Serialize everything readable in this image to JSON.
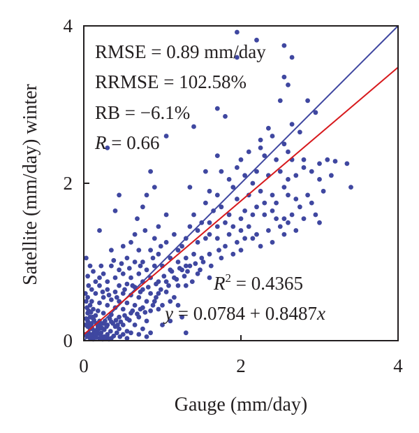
{
  "chart_data": {
    "type": "scatter",
    "xlabel": "Gauge (mm/day)",
    "ylabel": "Satellite (mm/day) winter",
    "xlim": [
      0,
      4
    ],
    "ylim": [
      0,
      4
    ],
    "x_ticks": [
      "0",
      "2",
      "4"
    ],
    "y_ticks": [
      "0",
      "2",
      "4"
    ],
    "grid": false,
    "colors": {
      "points": "#3f47a0",
      "one_to_one": "#3f47a0",
      "fit": "#d7191c"
    },
    "stats": {
      "rmse": "RMSE = 0.89 mm/day",
      "rrmse": "RRMSE = 102.58%",
      "rb": "RB = −6.1%",
      "r_symbol": "R",
      "r_value": " = 0.66",
      "r2_symbol": "R",
      "r2_sup": "2",
      "r2_value": " = 0.4365",
      "eq_y": "y",
      "eq_body": " = 0.0784 + 0.8487",
      "eq_x": "x"
    },
    "lines": [
      {
        "name": "1:1 line",
        "intercept": 0,
        "slope": 1
      },
      {
        "name": "fit",
        "intercept": 0.0784,
        "slope": 0.8487
      }
    ],
    "points": [
      [
        1.95,
        3.92
      ],
      [
        2.2,
        3.82
      ],
      [
        2.55,
        3.75
      ],
      [
        1.95,
        3.6
      ],
      [
        2.65,
        3.6
      ],
      [
        2.55,
        3.35
      ],
      [
        2.6,
        3.25
      ],
      [
        2.5,
        3.05
      ],
      [
        2.85,
        3.05
      ],
      [
        2.95,
        2.9
      ],
      [
        2.65,
        2.75
      ],
      [
        1.7,
        2.95
      ],
      [
        1.8,
        2.85
      ],
      [
        1.05,
        2.6
      ],
      [
        1.4,
        2.72
      ],
      [
        2.35,
        2.7
      ],
      [
        2.75,
        2.65
      ],
      [
        2.25,
        2.55
      ],
      [
        2.4,
        2.6
      ],
      [
        2.55,
        2.5
      ],
      [
        2.6,
        2.4
      ],
      [
        0.3,
        2.45
      ],
      [
        0.85,
        2.15
      ],
      [
        1.7,
        2.35
      ],
      [
        2.0,
        2.3
      ],
      [
        2.1,
        2.4
      ],
      [
        2.25,
        2.45
      ],
      [
        2.3,
        2.35
      ],
      [
        2.45,
        2.3
      ],
      [
        2.65,
        2.3
      ],
      [
        2.8,
        2.3
      ],
      [
        3.0,
        2.25
      ],
      [
        3.1,
        2.3
      ],
      [
        3.2,
        2.28
      ],
      [
        3.35,
        2.25
      ],
      [
        3.4,
        1.95
      ],
      [
        1.55,
        2.15
      ],
      [
        1.75,
        2.15
      ],
      [
        1.85,
        2.05
      ],
      [
        1.95,
        2.2
      ],
      [
        2.05,
        2.1
      ],
      [
        2.15,
        2.0
      ],
      [
        2.2,
        2.15
      ],
      [
        2.35,
        2.1
      ],
      [
        2.5,
        2.15
      ],
      [
        2.6,
        2.05
      ],
      [
        2.7,
        2.1
      ],
      [
        2.8,
        2.2
      ],
      [
        2.9,
        2.15
      ],
      [
        3.0,
        2.05
      ],
      [
        2.55,
        1.95
      ],
      [
        2.6,
        1.85
      ],
      [
        1.35,
        1.95
      ],
      [
        1.6,
        1.9
      ],
      [
        1.7,
        1.85
      ],
      [
        1.9,
        1.95
      ],
      [
        1.95,
        1.8
      ],
      [
        2.1,
        1.85
      ],
      [
        2.25,
        1.9
      ],
      [
        2.4,
        1.85
      ],
      [
        2.45,
        1.75
      ],
      [
        2.7,
        1.8
      ],
      [
        2.85,
        1.85
      ],
      [
        2.9,
        1.75
      ],
      [
        2.95,
        1.6
      ],
      [
        1.55,
        1.75
      ],
      [
        1.75,
        1.7
      ],
      [
        1.85,
        1.6
      ],
      [
        2.05,
        1.65
      ],
      [
        2.2,
        1.7
      ],
      [
        2.3,
        1.6
      ],
      [
        2.4,
        1.65
      ],
      [
        2.55,
        1.55
      ],
      [
        2.65,
        1.6
      ],
      [
        2.8,
        1.55
      ],
      [
        3.0,
        1.5
      ],
      [
        0.8,
        1.85
      ],
      [
        0.75,
        1.7
      ],
      [
        1.05,
        1.6
      ],
      [
        0.4,
        1.65
      ],
      [
        1.4,
        1.6
      ],
      [
        1.5,
        1.5
      ],
      [
        1.6,
        1.5
      ],
      [
        1.7,
        1.45
      ],
      [
        1.8,
        1.5
      ],
      [
        1.9,
        1.45
      ],
      [
        2.0,
        1.4
      ],
      [
        2.1,
        1.45
      ],
      [
        2.2,
        1.35
      ],
      [
        2.35,
        1.4
      ],
      [
        2.5,
        1.45
      ],
      [
        2.55,
        1.35
      ],
      [
        2.7,
        1.4
      ],
      [
        1.6,
        1.35
      ],
      [
        1.7,
        1.3
      ],
      [
        1.85,
        1.35
      ],
      [
        1.95,
        1.25
      ],
      [
        2.05,
        1.3
      ],
      [
        2.25,
        1.2
      ],
      [
        1.8,
        1.2
      ],
      [
        2.0,
        1.15
      ],
      [
        1.55,
        1.3
      ],
      [
        1.45,
        1.25
      ],
      [
        1.3,
        1.3
      ],
      [
        1.25,
        1.2
      ],
      [
        1.4,
        1.1
      ],
      [
        1.3,
        1.05
      ],
      [
        1.5,
        1.05
      ],
      [
        1.6,
        1.1
      ],
      [
        1.75,
        1.05
      ],
      [
        0.9,
        1.3
      ],
      [
        1.05,
        1.25
      ],
      [
        1.2,
        1.15
      ],
      [
        0.6,
        1.25
      ],
      [
        0.7,
        1.15
      ],
      [
        0.85,
        1.15
      ],
      [
        0.95,
        1.1
      ],
      [
        1.1,
        1.05
      ],
      [
        1.2,
        1.0
      ],
      [
        1.3,
        0.95
      ],
      [
        0.55,
        1.05
      ],
      [
        0.65,
        1.0
      ],
      [
        0.75,
        1.0
      ],
      [
        0.8,
        0.9
      ],
      [
        0.9,
        0.95
      ],
      [
        1.0,
        0.95
      ],
      [
        1.1,
        0.9
      ],
      [
        1.25,
        0.9
      ],
      [
        1.35,
        0.95
      ],
      [
        1.45,
        0.85
      ],
      [
        1.6,
        0.8
      ],
      [
        0.95,
        1.45
      ],
      [
        0.35,
        0.95
      ],
      [
        0.45,
        0.9
      ],
      [
        0.5,
        0.85
      ],
      [
        0.6,
        0.8
      ],
      [
        0.7,
        0.85
      ],
      [
        0.75,
        0.75
      ],
      [
        0.85,
        0.8
      ],
      [
        0.95,
        0.75
      ],
      [
        1.05,
        0.75
      ],
      [
        1.15,
        0.8
      ],
      [
        1.2,
        0.7
      ],
      [
        0.25,
        0.85
      ],
      [
        0.3,
        0.75
      ],
      [
        0.4,
        0.8
      ],
      [
        0.45,
        0.7
      ],
      [
        0.55,
        0.72
      ],
      [
        0.65,
        0.68
      ],
      [
        0.75,
        0.65
      ],
      [
        0.85,
        0.6
      ],
      [
        0.95,
        0.6
      ],
      [
        1.05,
        0.62
      ],
      [
        1.15,
        0.55
      ],
      [
        1.3,
        0.7
      ],
      [
        1.0,
        0.45
      ],
      [
        1.1,
        0.5
      ],
      [
        1.2,
        0.45
      ],
      [
        0.9,
        0.5
      ],
      [
        0.8,
        0.5
      ],
      [
        0.7,
        0.55
      ],
      [
        0.6,
        0.58
      ],
      [
        0.5,
        0.6
      ],
      [
        0.4,
        0.62
      ],
      [
        0.3,
        0.65
      ],
      [
        0.2,
        0.7
      ],
      [
        0.15,
        0.6
      ],
      [
        0.25,
        0.55
      ],
      [
        0.35,
        0.52
      ],
      [
        0.45,
        0.5
      ],
      [
        0.55,
        0.48
      ],
      [
        0.65,
        0.45
      ],
      [
        0.75,
        0.42
      ],
      [
        0.85,
        0.38
      ],
      [
        0.95,
        0.4
      ],
      [
        0.6,
        0.35
      ],
      [
        0.7,
        0.3
      ],
      [
        0.8,
        0.25
      ],
      [
        0.5,
        0.4
      ],
      [
        0.4,
        0.42
      ],
      [
        0.3,
        0.45
      ],
      [
        0.2,
        0.48
      ],
      [
        0.1,
        0.5
      ],
      [
        0.05,
        0.55
      ],
      [
        0.08,
        0.45
      ],
      [
        0.12,
        0.4
      ],
      [
        0.18,
        0.38
      ],
      [
        0.25,
        0.35
      ],
      [
        0.35,
        0.33
      ],
      [
        0.45,
        0.3
      ],
      [
        0.55,
        0.28
      ],
      [
        0.65,
        0.2
      ],
      [
        0.75,
        0.15
      ],
      [
        0.85,
        0.1
      ],
      [
        1.0,
        0.2
      ],
      [
        1.1,
        0.25
      ],
      [
        1.25,
        0.3
      ],
      [
        1.3,
        0.1
      ],
      [
        0.05,
        0.35
      ],
      [
        0.08,
        0.3
      ],
      [
        0.12,
        0.28
      ],
      [
        0.15,
        0.32
      ],
      [
        0.2,
        0.25
      ],
      [
        0.25,
        0.22
      ],
      [
        0.3,
        0.2
      ],
      [
        0.35,
        0.24
      ],
      [
        0.4,
        0.18
      ],
      [
        0.45,
        0.15
      ],
      [
        0.5,
        0.2
      ],
      [
        0.55,
        0.12
      ],
      [
        0.6,
        0.1
      ],
      [
        0.7,
        0.08
      ],
      [
        0.8,
        0.05
      ],
      [
        0.02,
        0.2
      ],
      [
        0.05,
        0.18
      ],
      [
        0.08,
        0.15
      ],
      [
        0.1,
        0.22
      ],
      [
        0.14,
        0.12
      ],
      [
        0.18,
        0.18
      ],
      [
        0.22,
        0.1
      ],
      [
        0.26,
        0.14
      ],
      [
        0.3,
        0.08
      ],
      [
        0.34,
        0.12
      ],
      [
        0.38,
        0.06
      ],
      [
        0.42,
        0.1
      ],
      [
        0.46,
        0.05
      ],
      [
        0.5,
        0.08
      ],
      [
        0.55,
        0.03
      ],
      [
        0.02,
        0.08
      ],
      [
        0.04,
        0.05
      ],
      [
        0.06,
        0.1
      ],
      [
        0.08,
        0.03
      ],
      [
        0.1,
        0.07
      ],
      [
        0.12,
        0.02
      ],
      [
        0.14,
        0.06
      ],
      [
        0.16,
        0.04
      ],
      [
        0.18,
        0.09
      ],
      [
        0.2,
        0.03
      ],
      [
        0.22,
        0.06
      ],
      [
        0.24,
        0.02
      ],
      [
        0.26,
        0.05
      ],
      [
        0.28,
        0.03
      ],
      [
        0.3,
        0.04
      ],
      [
        0.32,
        0.02
      ],
      [
        0.35,
        0.03
      ],
      [
        0.02,
        0.6
      ],
      [
        0.03,
        0.5
      ],
      [
        0.04,
        0.42
      ],
      [
        0.06,
        0.38
      ],
      [
        0.09,
        0.36
      ],
      [
        0.11,
        0.3
      ],
      [
        0.13,
        0.26
      ],
      [
        0.16,
        0.22
      ],
      [
        0.19,
        0.15
      ],
      [
        0.03,
        0.28
      ],
      [
        0.05,
        0.25
      ],
      [
        0.07,
        0.22
      ],
      [
        0.09,
        0.18
      ],
      [
        0.11,
        0.15
      ],
      [
        0.13,
        0.1
      ],
      [
        0.15,
        0.08
      ],
      [
        0.17,
        0.13
      ],
      [
        0.21,
        0.2
      ],
      [
        0.23,
        0.16
      ],
      [
        0.27,
        0.25
      ],
      [
        0.29,
        0.18
      ],
      [
        0.33,
        0.28
      ],
      [
        0.37,
        0.22
      ],
      [
        0.41,
        0.26
      ],
      [
        0.43,
        0.2
      ],
      [
        0.47,
        0.24
      ],
      [
        0.52,
        0.32
      ],
      [
        0.58,
        0.26
      ],
      [
        0.62,
        0.38
      ],
      [
        0.68,
        0.34
      ],
      [
        0.72,
        0.4
      ],
      [
        0.78,
        0.36
      ],
      [
        0.88,
        0.45
      ],
      [
        0.92,
        0.55
      ],
      [
        0.98,
        0.65
      ],
      [
        1.08,
        0.7
      ],
      [
        1.18,
        0.78
      ],
      [
        1.28,
        0.82
      ],
      [
        1.38,
        0.75
      ],
      [
        1.48,
        0.9
      ],
      [
        0.15,
        0.75
      ],
      [
        0.2,
        0.8
      ],
      [
        0.1,
        0.65
      ],
      [
        0.06,
        0.7
      ],
      [
        0.24,
        0.62
      ],
      [
        0.32,
        0.58
      ],
      [
        0.42,
        0.55
      ],
      [
        0.52,
        0.65
      ],
      [
        0.62,
        0.7
      ],
      [
        0.72,
        0.62
      ],
      [
        0.82,
        0.68
      ],
      [
        0.92,
        0.72
      ],
      [
        1.02,
        0.82
      ],
      [
        1.12,
        0.88
      ],
      [
        1.22,
        0.92
      ],
      [
        1.32,
        0.88
      ],
      [
        1.42,
        0.98
      ],
      [
        1.52,
        1.0
      ],
      [
        1.62,
        0.95
      ],
      [
        1.72,
        1.15
      ],
      [
        1.9,
        1.1
      ],
      [
        2.15,
        1.3
      ],
      [
        2.4,
        1.25
      ],
      [
        2.6,
        1.5
      ],
      [
        2.75,
        1.7
      ],
      [
        3.05,
        1.9
      ],
      [
        3.15,
        2.1
      ],
      [
        2.45,
        1.55
      ],
      [
        2.3,
        1.75
      ],
      [
        2.15,
        1.6
      ],
      [
        2.0,
        1.55
      ],
      [
        1.65,
        1.65
      ],
      [
        1.45,
        1.4
      ],
      [
        1.35,
        1.45
      ],
      [
        1.15,
        1.35
      ],
      [
        0.98,
        1.2
      ],
      [
        0.88,
        1.05
      ],
      [
        0.72,
        0.95
      ],
      [
        0.58,
        0.92
      ],
      [
        0.48,
        0.98
      ],
      [
        0.38,
        1.02
      ],
      [
        0.22,
        0.95
      ],
      [
        0.12,
        0.88
      ],
      [
        0.05,
        0.82
      ],
      [
        0.08,
        0.95
      ],
      [
        0.03,
        1.05
      ],
      [
        0.35,
        1.15
      ],
      [
        0.5,
        1.2
      ],
      [
        0.65,
        1.35
      ],
      [
        0.78,
        1.4
      ],
      [
        0.68,
        1.55
      ],
      [
        0.9,
        1.95
      ],
      [
        0.45,
        1.85
      ],
      [
        0.2,
        1.4
      ]
    ]
  }
}
